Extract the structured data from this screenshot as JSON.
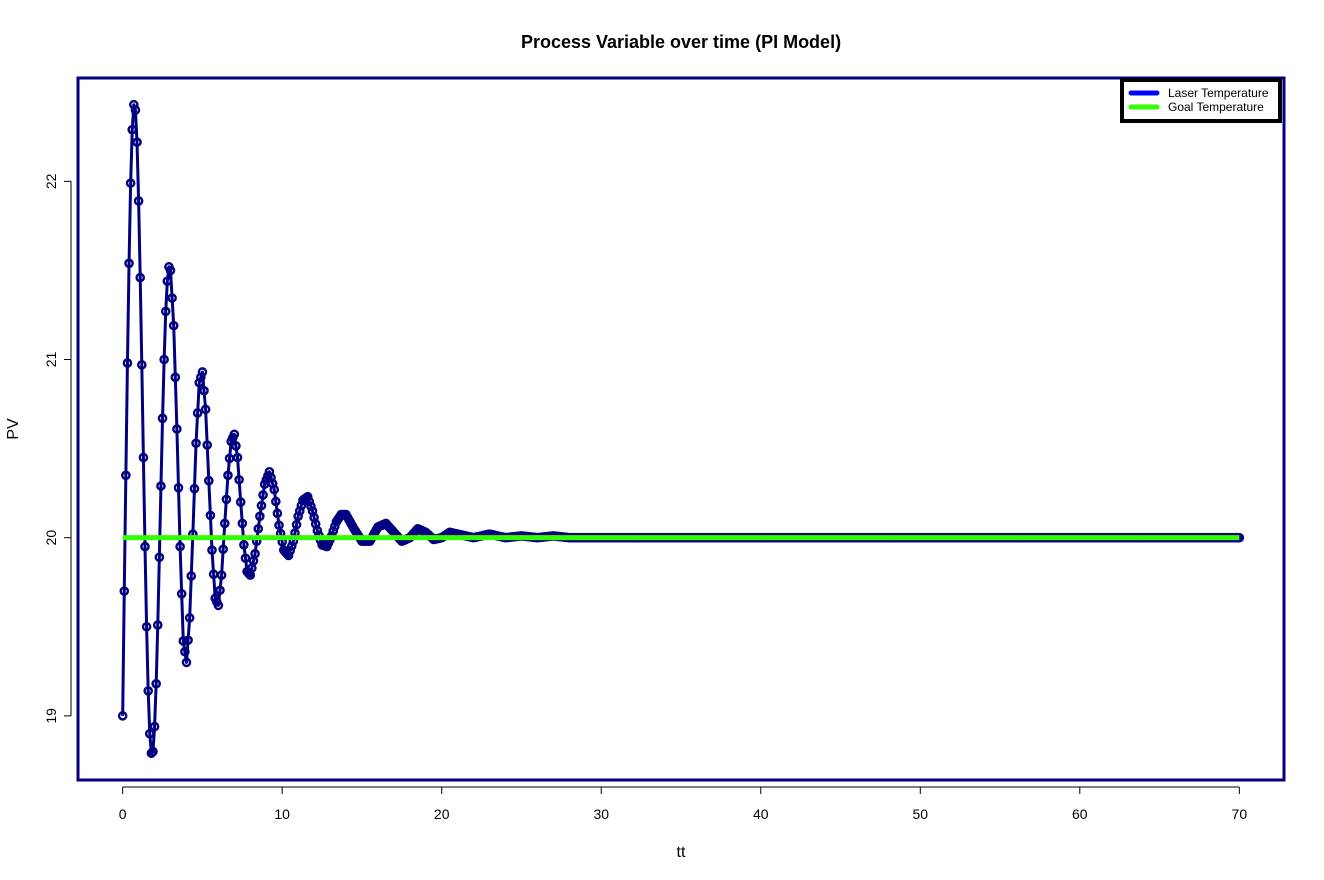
{
  "chart_data": {
    "type": "line",
    "title": "Process Variable over time (PI Model)",
    "xlabel": "tt",
    "ylabel": "PV",
    "xlim": [
      -2.8,
      72.8
    ],
    "ylim": [
      18.64,
      22.58
    ],
    "x_ticks": [
      0,
      10,
      20,
      30,
      40,
      50,
      60,
      70
    ],
    "y_ticks": [
      19,
      20,
      21,
      22
    ],
    "grid": false,
    "legend_position": "top-right",
    "legend": [
      {
        "label": "Laser Temperature",
        "color": "#0000ff"
      },
      {
        "label": "Goal Temperature",
        "color": "#33ff00"
      }
    ],
    "sampling": {
      "t_start": 0,
      "t_end": 70,
      "step": 0.1
    },
    "series": [
      {
        "name": "Laser Temperature",
        "color": "#000080",
        "style": "line+points",
        "x": [
          0,
          0.1,
          0.2,
          0.3,
          0.4,
          0.5,
          0.6,
          0.7,
          0.8,
          0.9,
          1.0,
          1.1,
          1.2,
          1.3,
          1.4,
          1.5,
          1.6,
          1.7,
          1.8,
          1.9,
          2.0,
          2.1,
          2.2,
          2.3,
          2.4,
          2.5,
          2.6,
          2.7,
          2.8,
          2.9,
          3.0,
          3.2,
          3.4,
          3.6,
          3.8,
          4.0,
          4.2,
          4.4,
          4.6,
          4.8,
          5.0,
          5.2,
          5.4,
          5.6,
          5.8,
          6.0,
          6.2,
          6.4,
          6.6,
          6.8,
          7.0,
          7.2,
          7.4,
          7.6,
          7.8,
          8.0,
          8.3,
          8.6,
          8.9,
          9.2,
          9.5,
          9.8,
          10.1,
          10.4,
          10.7,
          11.0,
          11.3,
          11.6,
          11.9,
          12.2,
          12.5,
          12.8,
          13.1,
          13.4,
          13.7,
          14.0,
          14.5,
          15.0,
          15.5,
          16.0,
          16.5,
          17.0,
          17.5,
          18.0,
          18.5,
          19.0,
          19.5,
          20.0,
          20.5,
          21.0,
          22.0,
          23.0,
          24.0,
          25.0,
          26.0,
          27.0,
          28.0,
          29.0,
          30.0,
          32.0,
          34.0,
          36.0,
          38.0,
          40.0,
          45.0,
          50.0,
          55.0,
          60.0,
          65.0,
          70.0
        ],
        "y": [
          19.0,
          19.7,
          20.35,
          20.98,
          21.54,
          21.99,
          22.29,
          22.43,
          22.4,
          22.22,
          21.89,
          21.46,
          20.97,
          20.45,
          19.95,
          19.5,
          19.14,
          18.9,
          18.79,
          18.8,
          18.94,
          19.18,
          19.51,
          19.89,
          20.29,
          20.67,
          21.0,
          21.27,
          21.44,
          21.52,
          21.5,
          21.19,
          20.61,
          19.95,
          19.42,
          19.3,
          19.55,
          20.02,
          20.53,
          20.87,
          20.93,
          20.72,
          20.32,
          19.93,
          19.66,
          19.62,
          19.79,
          20.08,
          20.35,
          20.54,
          20.58,
          20.45,
          20.2,
          19.96,
          19.81,
          19.79,
          19.91,
          20.12,
          20.3,
          20.37,
          20.27,
          20.07,
          19.93,
          19.9,
          19.98,
          20.12,
          20.21,
          20.23,
          20.15,
          20.04,
          19.96,
          19.95,
          20.01,
          20.09,
          20.13,
          20.13,
          20.05,
          19.98,
          19.98,
          20.06,
          20.08,
          20.03,
          19.98,
          20.0,
          20.05,
          20.03,
          19.99,
          20.0,
          20.03,
          20.02,
          20.0,
          20.02,
          20.0,
          20.01,
          20.0,
          20.01,
          20.0,
          20.0,
          20.0,
          20.0,
          20.0,
          20.0,
          20.0,
          20.0,
          20.0,
          20.0,
          20.0,
          20.0,
          20.0,
          20.0
        ]
      },
      {
        "name": "Goal Temperature",
        "color": "#33ff00",
        "style": "line",
        "x": [
          0,
          70
        ],
        "y": [
          20,
          20
        ]
      }
    ]
  }
}
